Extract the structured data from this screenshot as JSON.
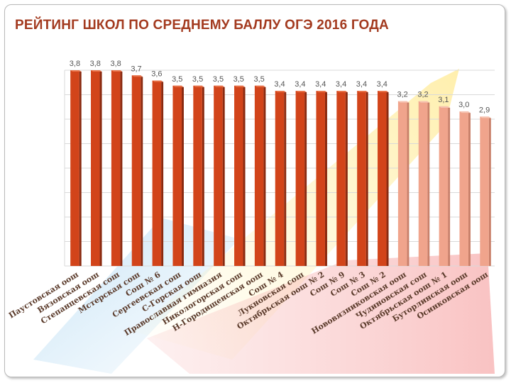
{
  "header": {
    "title": "РЕЙТИНГ ШКОЛ ПО СРЕДНЕМУ БАЛЛУ ОГЭ 2016 ГОДА"
  },
  "colors": {
    "bar_dark": "#d2441a",
    "bar_light": "#f0a48c",
    "grid": "#d9d9d9",
    "title": "#a33a1f"
  },
  "chart_data": {
    "type": "bar",
    "title": "РЕЙТИНГ ШКОЛ ПО СРЕДНЕМУ БАЛЛУ ОГЭ 2016 ГОДА",
    "xlabel": "",
    "ylabel": "",
    "ylim": [
      0,
      3.8
    ],
    "grid": true,
    "legend": "none",
    "categories": [
      "Паустовская оош",
      "Вязовская оош",
      "Степанцевская сош",
      "Мстерская сош",
      "Сош № 6",
      "Сергеевская сош",
      "С-Горская оош",
      "Православная гимназия",
      "Никологорская сош",
      "Н-Городищенская оош",
      "Сош № 4",
      "Лукновская сош",
      "Октябрьская оош № 2",
      "Сош № 9",
      "Сош № 3",
      "Сош № 2",
      "Нововязниковская оош",
      "Чудиновская сош",
      "Октябрьская оош № 1",
      "Буторлинская оош",
      "Осинковская оош"
    ],
    "values": [
      3.8,
      3.8,
      3.8,
      3.7,
      3.6,
      3.5,
      3.5,
      3.5,
      3.5,
      3.5,
      3.4,
      3.4,
      3.4,
      3.4,
      3.4,
      3.4,
      3.2,
      3.2,
      3.1,
      3.0,
      2.9
    ],
    "value_labels": [
      "3,8",
      "3,8",
      "3,8",
      "3,7",
      "3,6",
      "3,5",
      "3,5",
      "3,5",
      "3,5",
      "3,5",
      "3,4",
      "3,4",
      "3,4",
      "3,4",
      "3,4",
      "3,4",
      "3,2",
      "3,2",
      "3,1",
      "3,0",
      "2,9"
    ],
    "highlight_from_index": 16
  }
}
